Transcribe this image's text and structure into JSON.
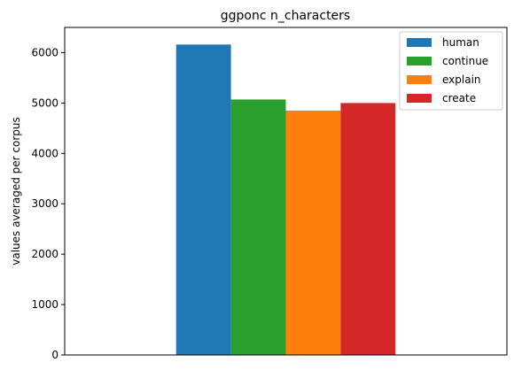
{
  "chart_data": {
    "type": "bar",
    "title": "ggponc n_characters",
    "xlabel": "",
    "ylabel": "values averaged per corpus",
    "categories": [
      ""
    ],
    "ylim": [
      0,
      6500
    ],
    "yticks": [
      0,
      1000,
      2000,
      3000,
      4000,
      5000,
      6000
    ],
    "grid": false,
    "legend_position": "top-right",
    "series": [
      {
        "name": "human",
        "values": [
          6160
        ],
        "color": "#1f77b4"
      },
      {
        "name": "continue",
        "values": [
          5070
        ],
        "color": "#2ca02c"
      },
      {
        "name": "explain",
        "values": [
          4850
        ],
        "color": "#ff7f0e"
      },
      {
        "name": "create",
        "values": [
          5000
        ],
        "color": "#d62728"
      }
    ]
  }
}
